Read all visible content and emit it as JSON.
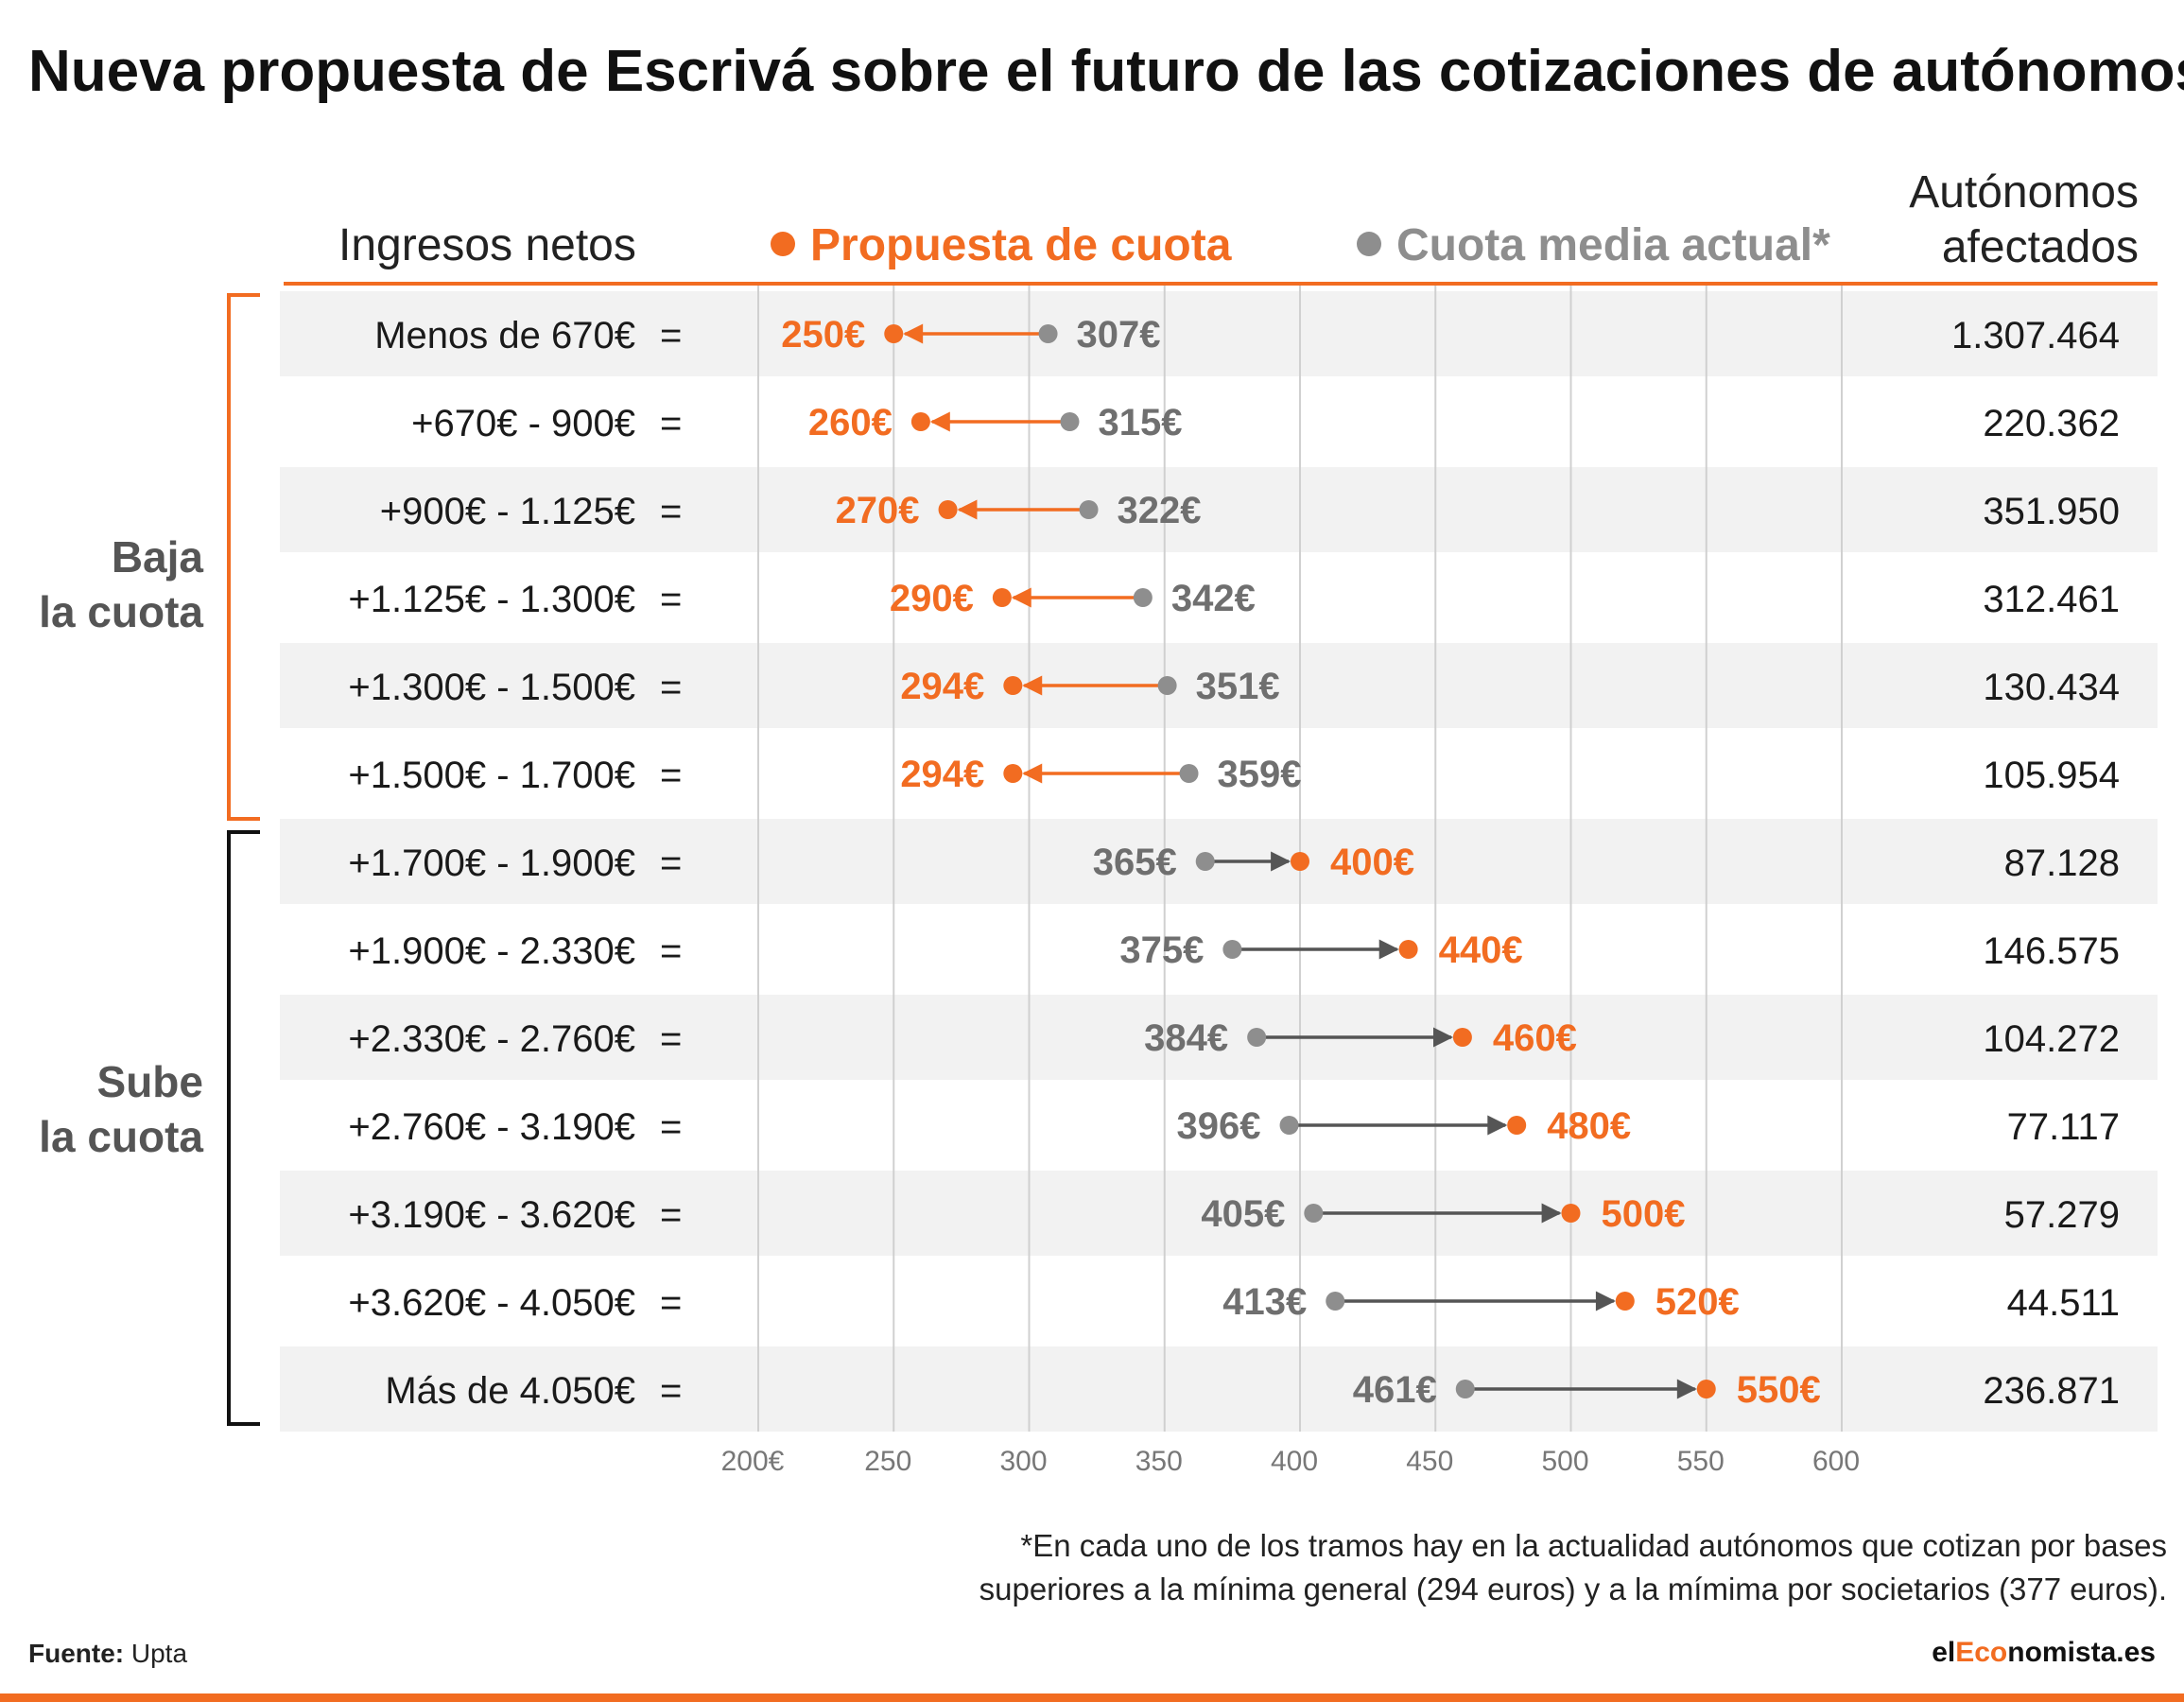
{
  "title": "Nueva propuesta de Escrivá sobre el futuro de las cotizaciones de autónomos",
  "headers": {
    "ingresos": "Ingresos netos",
    "propuesta": "Propuesta de cuota",
    "actual": "Cuota media actual*",
    "afectados_line1": "Autónomos",
    "afectados_line2": "afectados"
  },
  "groups": {
    "baja_line1": "Baja",
    "baja_line2": "la cuota",
    "sube_line1": "Sube",
    "sube_line2": "la cuota"
  },
  "colors": {
    "propuesta": "#f26c21",
    "actual": "#8e8e8e",
    "arrow_down": "#f26c21",
    "arrow_up": "#555555",
    "row_band": "#f2f2f2",
    "grid": "#d0d0d0"
  },
  "chart_data": {
    "type": "dumbbell",
    "x_ticks": [
      "200€",
      "250",
      "300",
      "350",
      "400",
      "450",
      "500",
      "550",
      "600"
    ],
    "x_tick_values": [
      200,
      250,
      300,
      350,
      400,
      450,
      500,
      550,
      600
    ],
    "xlim": [
      200,
      600
    ],
    "unit_suffix": "€",
    "categories": [
      "Menos de 670€",
      "+670€ - 900€",
      "+900€ - 1.125€",
      "+1.125€ - 1.300€",
      "+1.300€ - 1.500€",
      "+1.500€ - 1.700€",
      "+1.700€ - 1.900€",
      "+1.900€ - 2.330€",
      "+2.330€ - 2.760€",
      "+2.760€ - 3.190€",
      "+3.190€ - 3.620€",
      "+3.620€ - 4.050€",
      "Más de 4.050€"
    ],
    "equals_sign": "=",
    "series": [
      {
        "name": "Propuesta de cuota",
        "values": [
          250,
          260,
          270,
          290,
          294,
          294,
          400,
          440,
          460,
          480,
          500,
          520,
          550
        ]
      },
      {
        "name": "Cuota media actual*",
        "values": [
          307,
          315,
          322,
          342,
          351,
          359,
          365,
          375,
          384,
          396,
          405,
          413,
          461
        ]
      }
    ],
    "afectados": [
      "1.307.464",
      "220.362",
      "351.950",
      "312.461",
      "130.434",
      "105.954",
      "87.128",
      "146.575",
      "104.272",
      "77.117",
      "57.279",
      "44.511",
      "236.871"
    ],
    "groups": [
      {
        "label": "Baja la cuota",
        "rows": [
          0,
          5
        ]
      },
      {
        "label": "Sube la cuota",
        "rows": [
          6,
          12
        ]
      }
    ],
    "grid": true
  },
  "footnote_line1": "*En cada uno de los tramos hay en la actualidad autónomos que cotizan por bases",
  "footnote_line2": "superiores a la mínima general (294 euros) y a la mímima por societarios (377 euros).",
  "source_label": "Fuente:",
  "source_value": "Upta",
  "brand_pre": "el",
  "brand_accent": "Eco",
  "brand_post": "nomista.es"
}
